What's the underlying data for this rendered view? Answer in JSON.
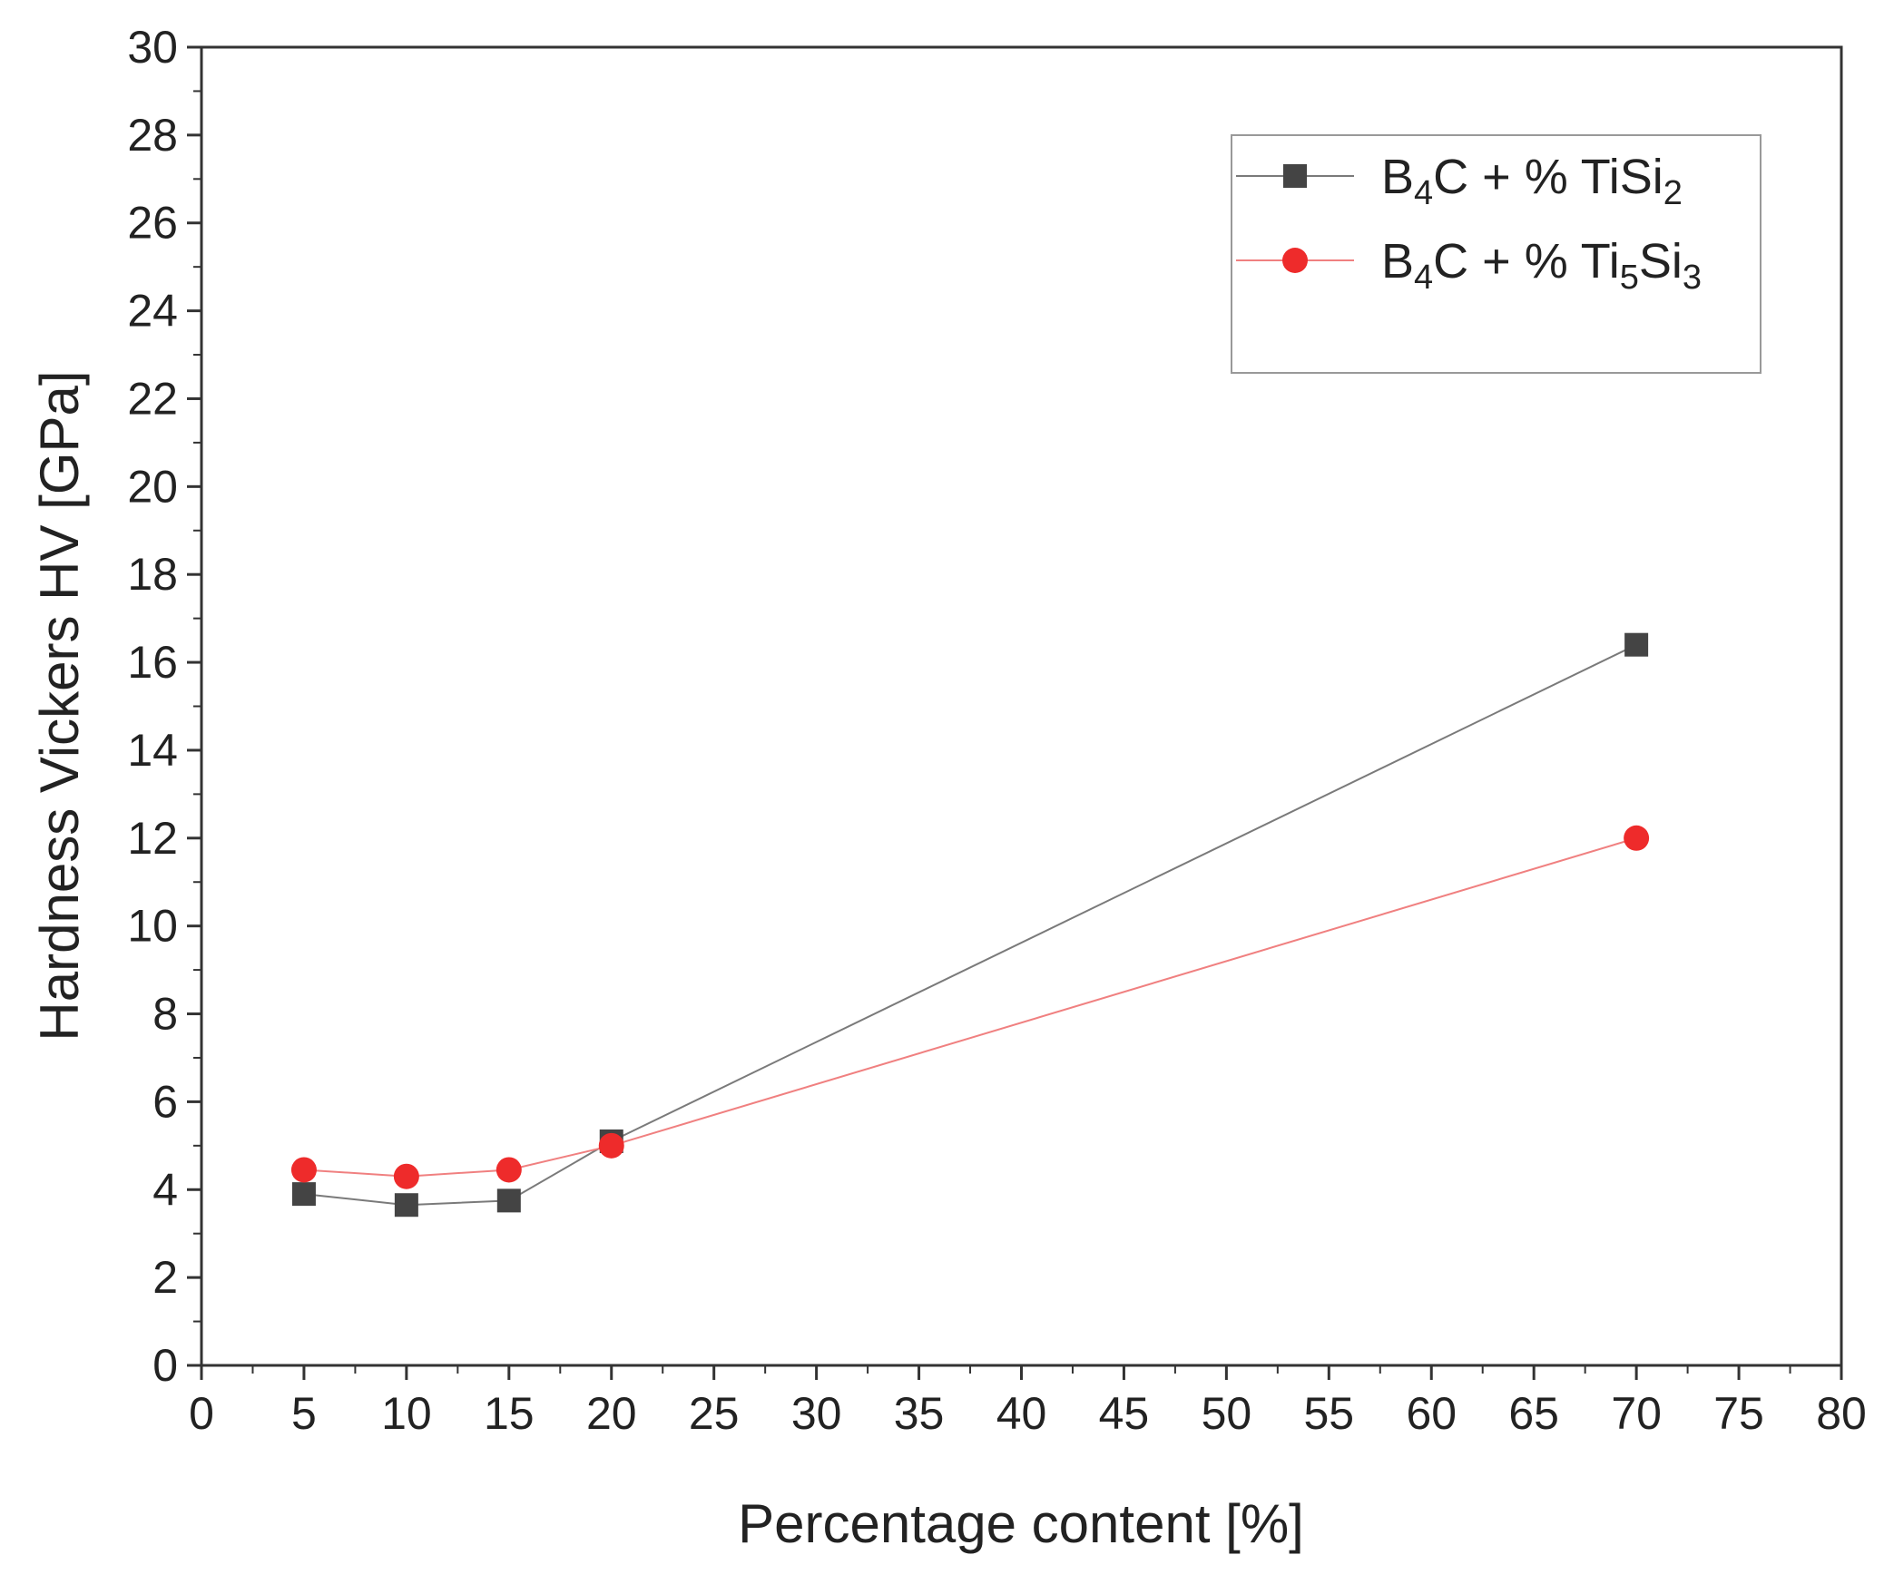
{
  "chart_data": {
    "type": "line",
    "title": "",
    "xlabel": "Percentage content [%]",
    "ylabel": "Hardness Vickers HV [GPa]",
    "xlim": [
      0,
      80
    ],
    "ylim": [
      0,
      30
    ],
    "x_major_ticks": [
      0,
      5,
      10,
      15,
      20,
      25,
      30,
      35,
      40,
      45,
      50,
      55,
      60,
      65,
      70,
      75,
      80
    ],
    "y_major_ticks": [
      0,
      2,
      4,
      6,
      8,
      10,
      12,
      14,
      16,
      18,
      20,
      22,
      24,
      26,
      28,
      30
    ],
    "grid": false,
    "legend_position": "top-right",
    "series": [
      {
        "name": "B4C + % TiSi2",
        "legend_parts": {
          "a": "B",
          "a_sub": "4",
          "b": "C + % TiSi",
          "b_sub": "2",
          "c": "",
          "c_sub": ""
        },
        "marker": "square",
        "color": "#444444",
        "line_color": "#7a7a7a",
        "x": [
          5,
          10,
          15,
          20,
          70
        ],
        "y": [
          3.9,
          3.65,
          3.75,
          5.1,
          16.4
        ]
      },
      {
        "name": "B4C + % Ti5Si3",
        "legend_parts": {
          "a": "B",
          "a_sub": "4",
          "b": "C + % Ti",
          "b_sub": "5",
          "c": "Si",
          "c_sub": "3"
        },
        "marker": "circle",
        "color": "#ee2b2b",
        "line_color": "#f08080",
        "x": [
          5,
          10,
          15,
          20,
          70
        ],
        "y": [
          4.45,
          4.3,
          4.45,
          5.0,
          12.0
        ]
      }
    ]
  }
}
